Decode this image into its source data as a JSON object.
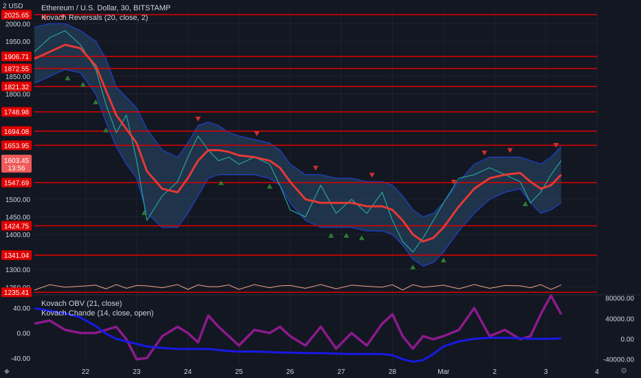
{
  "header": {
    "currency": "2 USD",
    "title": "Ethereum / U.S. Dollar, 30, BITSTAMP",
    "indicator": "Kovach Reversals (20, close, 2)",
    "lower_indicator_1": "Kovach OBV (21, close)",
    "lower_indicator_2": "Kovach Chande (14, close, open)"
  },
  "price_badge": {
    "price": "1603.45",
    "countdown": "13:56"
  },
  "colors": {
    "background": "#131722",
    "grid": "#1e2230",
    "level_line": "#e00000",
    "candle_up": "#26a69a",
    "band_fill": "#2a4a6b",
    "band_edge": "#1f3db3",
    "ma_line": "#e53935",
    "obv_line": "#1919e6",
    "chande_line": "#8c1a8c",
    "volume_line": "#f4a58a"
  },
  "icons": {
    "logo": "tradingview-logo-icon",
    "settings": "gear-icon"
  },
  "chart_data": [
    {
      "type": "line",
      "pane": "price",
      "x_tick_labels": [
        "22",
        "23",
        "24",
        "25",
        "26",
        "27",
        "28",
        "Mar",
        "2",
        "3",
        "4"
      ],
      "y_tick_labels": [
        "2000.00",
        "1950.00",
        "1850.00",
        "1800.00",
        "1500.00",
        "1450.00",
        "1400.00",
        "1300.00",
        "1250.00"
      ],
      "ylim": [
        1230,
        2040
      ],
      "level_lines": [
        2025.65,
        1906.71,
        1872.55,
        1821.32,
        1748.98,
        1694.08,
        1653.95,
        1547.69,
        1424.75,
        1341.04,
        1235.41
      ],
      "level_labels": [
        "2025.65",
        "1906.71",
        "1872.55",
        "1821.32",
        "1748.98",
        "1694.08",
        "1653.95",
        "1547.69",
        "1424.75",
        "1341.04",
        "1235.41"
      ],
      "last_price": 1603.45,
      "x": [
        21.0,
        21.3,
        21.6,
        21.9,
        22.2,
        22.4,
        22.6,
        22.8,
        23.0,
        23.2,
        23.5,
        23.8,
        24.0,
        24.2,
        24.4,
        24.6,
        24.8,
        25.0,
        25.3,
        25.6,
        25.8,
        26.0,
        26.3,
        26.6,
        26.9,
        27.2,
        27.5,
        27.8,
        28.0,
        28.2,
        28.4,
        28.6,
        28.8,
        29.0,
        29.3,
        29.6,
        29.9,
        30.2,
        30.5,
        30.7,
        30.9,
        31.1,
        31.3
      ],
      "series": [
        {
          "values": [
            1920,
            1960,
            1980,
            1940,
            1870,
            1770,
            1690,
            1740,
            1610,
            1440,
            1510,
            1550,
            1620,
            1680,
            1640,
            1610,
            1620,
            1600,
            1620,
            1600,
            1540,
            1470,
            1450,
            1540,
            1460,
            1500,
            1460,
            1520,
            1440,
            1380,
            1350,
            1390,
            1440,
            1490,
            1560,
            1570,
            1590,
            1570,
            1550,
            1490,
            1520,
            1570,
            1610
          ]
        },
        {
          "values": [
            1900,
            1920,
            1940,
            1930,
            1880,
            1810,
            1740,
            1700,
            1660,
            1580,
            1530,
            1520,
            1560,
            1610,
            1640,
            1640,
            1635,
            1625,
            1620,
            1610,
            1590,
            1550,
            1500,
            1490,
            1490,
            1490,
            1480,
            1480,
            1470,
            1440,
            1400,
            1380,
            1390,
            1420,
            1480,
            1530,
            1560,
            1570,
            1575,
            1550,
            1530,
            1540,
            1570
          ]
        },
        {
          "values": [
            1990,
            2000,
            2000,
            1980,
            1950,
            1900,
            1820,
            1790,
            1760,
            1700,
            1640,
            1620,
            1660,
            1710,
            1720,
            1710,
            1690,
            1680,
            1670,
            1660,
            1640,
            1600,
            1570,
            1570,
            1560,
            1560,
            1550,
            1550,
            1540,
            1510,
            1470,
            1450,
            1460,
            1490,
            1550,
            1600,
            1620,
            1620,
            1620,
            1610,
            1600,
            1620,
            1650
          ]
        },
        {
          "values": [
            1830,
            1850,
            1870,
            1860,
            1800,
            1720,
            1650,
            1600,
            1560,
            1460,
            1420,
            1420,
            1460,
            1510,
            1560,
            1570,
            1570,
            1570,
            1570,
            1560,
            1540,
            1490,
            1440,
            1420,
            1420,
            1420,
            1410,
            1410,
            1400,
            1370,
            1330,
            1310,
            1320,
            1350,
            1410,
            1460,
            1500,
            1520,
            1530,
            1490,
            1460,
            1470,
            1490
          ]
        }
      ],
      "sell_markers_x": [
        21.2,
        21.55,
        24.2,
        25.35,
        26.5,
        27.6,
        29.2,
        29.8,
        30.3,
        31.2
      ],
      "buy_markers_x": [
        21.65,
        21.95,
        22.2,
        22.4,
        23.15,
        24.65,
        25.6,
        26.8,
        27.1,
        27.4,
        28.4,
        29.0,
        30.6
      ]
    },
    {
      "type": "line",
      "pane": "indicators",
      "x": [
        21.0,
        21.3,
        21.6,
        21.9,
        22.2,
        22.4,
        22.6,
        22.8,
        23.0,
        23.2,
        23.5,
        23.8,
        24.0,
        24.2,
        24.4,
        24.6,
        24.8,
        25.0,
        25.3,
        25.6,
        25.8,
        26.0,
        26.3,
        26.6,
        26.9,
        27.2,
        27.5,
        27.8,
        28.0,
        28.2,
        28.4,
        28.6,
        28.8,
        29.0,
        29.3,
        29.6,
        29.9,
        30.2,
        30.5,
        30.7,
        30.9,
        31.1,
        31.3
      ],
      "y_tick_labels_left": [
        "40.00",
        "0.00",
        "-40.00"
      ],
      "y_tick_labels_right": [
        "80000.00",
        "40000.00",
        "0.00",
        "-40000.00"
      ],
      "ylim_left": [
        -50,
        60
      ],
      "ylim_right": [
        -50000,
        85000
      ],
      "series": [
        {
          "name": "Kovach OBV (21, close)",
          "axis": "right",
          "values": [
            60000,
            55000,
            50000,
            42000,
            25000,
            10000,
            0,
            -5000,
            -10000,
            -15000,
            -18000,
            -20000,
            -20000,
            -20000,
            -20000,
            -22000,
            -24000,
            -25000,
            -25000,
            -26000,
            -27000,
            -27000,
            -28000,
            -28000,
            -29000,
            -30000,
            -30000,
            -30000,
            -32000,
            -40000,
            -45000,
            -42000,
            -30000,
            -15000,
            -5000,
            0,
            2000,
            2000,
            1000,
            0,
            0,
            0,
            1000
          ]
        },
        {
          "name": "Kovach Chande (14, close, open)",
          "axis": "left",
          "values": [
            15,
            20,
            5,
            0,
            0,
            5,
            10,
            -10,
            -42,
            -40,
            -5,
            10,
            0,
            -15,
            28,
            10,
            -5,
            -20,
            5,
            0,
            10,
            -5,
            -20,
            10,
            -25,
            0,
            -20,
            15,
            30,
            -5,
            -25,
            -5,
            -10,
            -5,
            5,
            40,
            -5,
            5,
            -10,
            -5,
            30,
            60,
            30
          ]
        }
      ]
    }
  ]
}
